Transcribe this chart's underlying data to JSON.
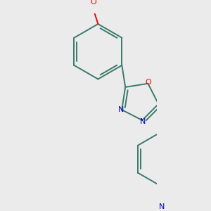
{
  "background_color": "#ebebeb",
  "bond_color": "#3a7a6a",
  "atom_colors": {
    "O": "#ff0000",
    "N": "#0000cc"
  },
  "figsize": [
    3.0,
    3.0
  ],
  "dpi": 100,
  "lw": 1.4,
  "fs": 7.5
}
